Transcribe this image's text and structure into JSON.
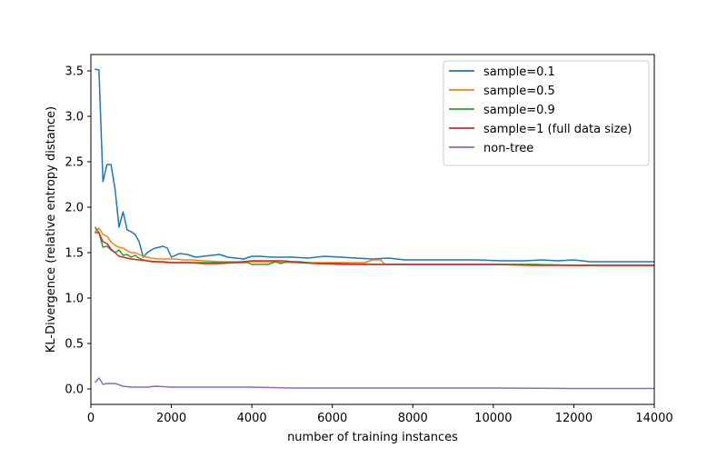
{
  "chart_data": {
    "type": "line",
    "title": "",
    "xlabel": "number of training instances",
    "ylabel": "KL-Divergence (relative entropy distance)",
    "xlim": [
      0,
      14000
    ],
    "ylim": [
      -0.17,
      3.68
    ],
    "xticks": [
      0,
      2000,
      4000,
      6000,
      8000,
      10000,
      12000,
      14000
    ],
    "xtick_labels": [
      "0",
      "2000",
      "4000",
      "6000",
      "8000",
      "10000",
      "12000",
      "14000"
    ],
    "yticks": [
      0.0,
      0.5,
      1.0,
      1.5,
      2.0,
      2.5,
      3.0,
      3.5
    ],
    "ytick_labels": [
      "0.0",
      "0.5",
      "1.0",
      "1.5",
      "2.0",
      "2.5",
      "3.0",
      "3.5"
    ],
    "grid": false,
    "legend_position": "top-right",
    "series": [
      {
        "name": "sample=0.1",
        "color": "#1f77b4",
        "points": [
          [
            100,
            3.52
          ],
          [
            200,
            3.51
          ],
          [
            300,
            2.28
          ],
          [
            400,
            2.47
          ],
          [
            500,
            2.47
          ],
          [
            600,
            2.2
          ],
          [
            700,
            1.78
          ],
          [
            800,
            1.95
          ],
          [
            900,
            1.75
          ],
          [
            1000,
            1.73
          ],
          [
            1100,
            1.7
          ],
          [
            1200,
            1.62
          ],
          [
            1300,
            1.45
          ],
          [
            1400,
            1.5
          ],
          [
            1500,
            1.53
          ],
          [
            1600,
            1.55
          ],
          [
            1700,
            1.56
          ],
          [
            1800,
            1.57
          ],
          [
            1900,
            1.55
          ],
          [
            2000,
            1.45
          ],
          [
            2200,
            1.49
          ],
          [
            2400,
            1.48
          ],
          [
            2600,
            1.45
          ],
          [
            2800,
            1.46
          ],
          [
            3000,
            1.47
          ],
          [
            3200,
            1.48
          ],
          [
            3400,
            1.45
          ],
          [
            3600,
            1.44
          ],
          [
            3800,
            1.43
          ],
          [
            4000,
            1.46
          ],
          [
            4200,
            1.46
          ],
          [
            4500,
            1.45
          ],
          [
            5000,
            1.45
          ],
          [
            5400,
            1.44
          ],
          [
            5800,
            1.46
          ],
          [
            6200,
            1.45
          ],
          [
            6600,
            1.44
          ],
          [
            7000,
            1.43
          ],
          [
            7400,
            1.44
          ],
          [
            7800,
            1.42
          ],
          [
            8400,
            1.42
          ],
          [
            9000,
            1.42
          ],
          [
            9600,
            1.42
          ],
          [
            10200,
            1.41
          ],
          [
            10800,
            1.41
          ],
          [
            11200,
            1.42
          ],
          [
            11600,
            1.41
          ],
          [
            12000,
            1.42
          ],
          [
            12400,
            1.4
          ],
          [
            13000,
            1.4
          ],
          [
            13600,
            1.4
          ],
          [
            14000,
            1.4
          ]
        ]
      },
      {
        "name": "sample=0.5",
        "color": "#ff7f0e",
        "points": [
          [
            100,
            1.73
          ],
          [
            200,
            1.77
          ],
          [
            300,
            1.7
          ],
          [
            400,
            1.68
          ],
          [
            500,
            1.62
          ],
          [
            600,
            1.58
          ],
          [
            700,
            1.56
          ],
          [
            800,
            1.55
          ],
          [
            900,
            1.52
          ],
          [
            1000,
            1.5
          ],
          [
            1100,
            1.5
          ],
          [
            1200,
            1.48
          ],
          [
            1300,
            1.46
          ],
          [
            1400,
            1.45
          ],
          [
            1500,
            1.44
          ],
          [
            1700,
            1.43
          ],
          [
            1900,
            1.43
          ],
          [
            2100,
            1.43
          ],
          [
            2300,
            1.42
          ],
          [
            2500,
            1.42
          ],
          [
            2800,
            1.41
          ],
          [
            3200,
            1.4
          ],
          [
            3600,
            1.4
          ],
          [
            4000,
            1.4
          ],
          [
            4400,
            1.4
          ],
          [
            5000,
            1.39
          ],
          [
            5600,
            1.39
          ],
          [
            6200,
            1.39
          ],
          [
            6800,
            1.39
          ],
          [
            7000,
            1.42
          ],
          [
            7200,
            1.42
          ],
          [
            7300,
            1.37
          ],
          [
            8000,
            1.37
          ],
          [
            9000,
            1.37
          ],
          [
            10000,
            1.37
          ],
          [
            11000,
            1.37
          ],
          [
            12000,
            1.36
          ],
          [
            13000,
            1.36
          ],
          [
            14000,
            1.36
          ]
        ]
      },
      {
        "name": "sample=0.9",
        "color": "#2ca02c",
        "points": [
          [
            100,
            1.78
          ],
          [
            200,
            1.72
          ],
          [
            300,
            1.56
          ],
          [
            400,
            1.57
          ],
          [
            500,
            1.53
          ],
          [
            600,
            1.5
          ],
          [
            700,
            1.53
          ],
          [
            800,
            1.47
          ],
          [
            900,
            1.48
          ],
          [
            1000,
            1.45
          ],
          [
            1100,
            1.47
          ],
          [
            1200,
            1.44
          ],
          [
            1300,
            1.42
          ],
          [
            1400,
            1.41
          ],
          [
            1500,
            1.4
          ],
          [
            1700,
            1.4
          ],
          [
            1900,
            1.39
          ],
          [
            2100,
            1.39
          ],
          [
            2400,
            1.39
          ],
          [
            2800,
            1.39
          ],
          [
            3200,
            1.39
          ],
          [
            3600,
            1.39
          ],
          [
            3900,
            1.39
          ],
          [
            4000,
            1.37
          ],
          [
            4400,
            1.37
          ],
          [
            4600,
            1.4
          ],
          [
            4700,
            1.38
          ],
          [
            4900,
            1.4
          ],
          [
            5200,
            1.4
          ],
          [
            5600,
            1.38
          ],
          [
            6200,
            1.37
          ],
          [
            7000,
            1.37
          ],
          [
            8000,
            1.37
          ],
          [
            9000,
            1.37
          ],
          [
            10000,
            1.37
          ],
          [
            11000,
            1.37
          ],
          [
            12000,
            1.36
          ],
          [
            13000,
            1.36
          ],
          [
            14000,
            1.36
          ]
        ]
      },
      {
        "name": "sample=1 (full data size)",
        "color": "#d62728",
        "points": [
          [
            100,
            1.72
          ],
          [
            200,
            1.72
          ],
          [
            300,
            1.62
          ],
          [
            400,
            1.6
          ],
          [
            500,
            1.54
          ],
          [
            600,
            1.5
          ],
          [
            700,
            1.46
          ],
          [
            800,
            1.45
          ],
          [
            900,
            1.44
          ],
          [
            1000,
            1.43
          ],
          [
            1200,
            1.42
          ],
          [
            1400,
            1.41
          ],
          [
            1600,
            1.4
          ],
          [
            1800,
            1.4
          ],
          [
            2000,
            1.39
          ],
          [
            2400,
            1.39
          ],
          [
            2800,
            1.38
          ],
          [
            3200,
            1.38
          ],
          [
            3600,
            1.39
          ],
          [
            4000,
            1.41
          ],
          [
            4400,
            1.41
          ],
          [
            4800,
            1.41
          ],
          [
            5200,
            1.39
          ],
          [
            5600,
            1.38
          ],
          [
            6000,
            1.38
          ],
          [
            7000,
            1.37
          ],
          [
            8000,
            1.37
          ],
          [
            9000,
            1.37
          ],
          [
            10000,
            1.37
          ],
          [
            11000,
            1.36
          ],
          [
            12000,
            1.36
          ],
          [
            13000,
            1.36
          ],
          [
            14000,
            1.36
          ]
        ]
      },
      {
        "name": "non-tree",
        "color": "#9467bd",
        "points": [
          [
            100,
            0.07
          ],
          [
            200,
            0.12
          ],
          [
            300,
            0.05
          ],
          [
            400,
            0.06
          ],
          [
            600,
            0.06
          ],
          [
            800,
            0.03
          ],
          [
            1000,
            0.02
          ],
          [
            1400,
            0.02
          ],
          [
            1600,
            0.03
          ],
          [
            2000,
            0.02
          ],
          [
            2400,
            0.02
          ],
          [
            3000,
            0.02
          ],
          [
            4000,
            0.02
          ],
          [
            5000,
            0.01
          ],
          [
            6000,
            0.01
          ],
          [
            8000,
            0.01
          ],
          [
            10000,
            0.01
          ],
          [
            12000,
            0.005
          ],
          [
            14000,
            0.005
          ]
        ]
      }
    ]
  }
}
